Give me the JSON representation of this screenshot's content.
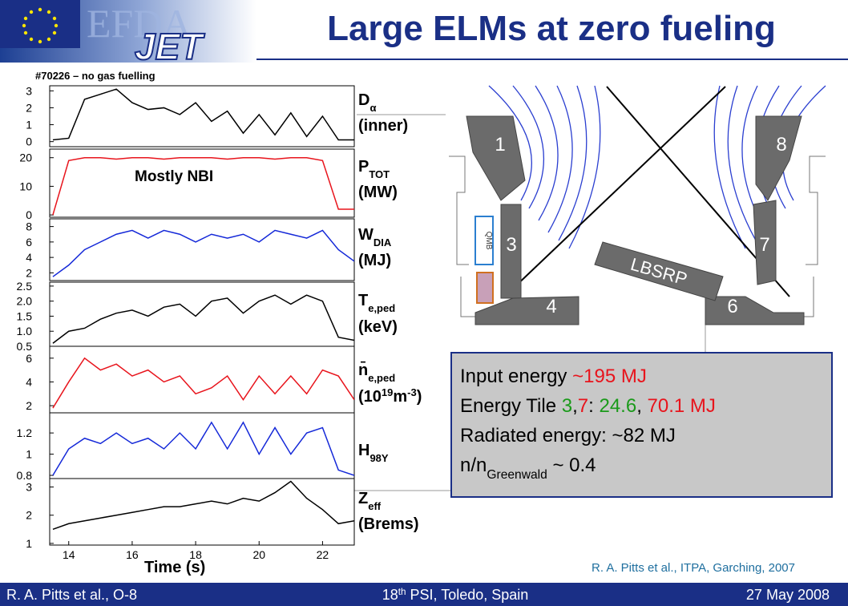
{
  "header": {
    "title": "Large ELMs at zero fueling",
    "logo_top": "EFDA",
    "logo_bottom": "JET"
  },
  "shot_note": "#70226 – no gas fuelling",
  "annotation": "Mostly NBI",
  "xlabel": "Time (s)",
  "chart_data": [
    {
      "type": "line",
      "label": [
        [
          {
            "text": "D"
          },
          {
            "text": "α",
            "sub": true
          }
        ],
        [
          {
            "text": "(inner)"
          }
        ]
      ],
      "x": [
        13.5,
        14,
        14.5,
        15,
        15.5,
        16,
        16.5,
        17,
        17.5,
        18,
        18.5,
        19,
        19.5,
        20,
        20.5,
        21,
        21.5,
        22,
        22.5,
        23
      ],
      "series": [
        {
          "color": "#000000",
          "values": [
            0.1,
            0.2,
            2.5,
            2.8,
            3.1,
            2.3,
            1.9,
            2.0,
            1.6,
            2.3,
            1.2,
            1.8,
            0.5,
            1.6,
            0.4,
            1.7,
            0.3,
            1.5,
            0.1,
            0.1
          ]
        }
      ],
      "xlim": [
        13.4,
        23
      ],
      "ylim": [
        -0.3,
        3.3
      ],
      "yticks": [
        0,
        1,
        2,
        3
      ]
    },
    {
      "type": "line",
      "label": [
        [
          {
            "text": "P"
          },
          {
            "text": "TOT",
            "sub": true
          }
        ],
        [
          {
            "text": "(MW)"
          }
        ]
      ],
      "x": [
        13.5,
        14,
        14.5,
        15,
        15.5,
        16,
        16.5,
        17,
        17.5,
        18,
        18.5,
        19,
        19.5,
        20,
        20.5,
        21,
        21.5,
        22,
        22.5,
        23
      ],
      "series": [
        {
          "color": "#e8141c",
          "values": [
            0,
            19,
            20,
            20,
            19.5,
            20,
            20,
            19.5,
            20,
            20,
            20,
            19.5,
            20,
            20,
            19.5,
            20,
            20,
            19,
            2,
            2
          ]
        }
      ],
      "xlim": [
        13.4,
        23
      ],
      "ylim": [
        -0.8,
        23
      ],
      "yticks": [
        0,
        10,
        20
      ]
    },
    {
      "type": "line",
      "label": [
        [
          {
            "text": "W"
          },
          {
            "text": "DIA",
            "sub": true
          }
        ],
        [
          {
            "text": "(MJ)"
          }
        ]
      ],
      "x": [
        13.5,
        14,
        14.5,
        15,
        15.5,
        16,
        16.5,
        17,
        17.5,
        18,
        18.5,
        19,
        19.5,
        20,
        20.5,
        21,
        21.5,
        22,
        22.5,
        23
      ],
      "series": [
        {
          "color": "#1428d8",
          "values": [
            1.5,
            3,
            5,
            6,
            7,
            7.5,
            6.5,
            7.5,
            7,
            6,
            7,
            6.5,
            7,
            6,
            7.5,
            7,
            6.5,
            7.5,
            5,
            3.5
          ]
        }
      ],
      "xlim": [
        13.4,
        23
      ],
      "ylim": [
        1,
        9
      ],
      "yticks": [
        2,
        4,
        6,
        8
      ]
    },
    {
      "type": "line",
      "label": [
        [
          {
            "text": "T"
          },
          {
            "text": "e,ped",
            "sub": true
          }
        ],
        [
          {
            "text": " (keV)"
          }
        ]
      ],
      "x": [
        13.5,
        14,
        14.5,
        15,
        15.5,
        16,
        16.5,
        17,
        17.5,
        18,
        18.5,
        19,
        19.5,
        20,
        20.5,
        21,
        21.5,
        22,
        22.5,
        23
      ],
      "series": [
        {
          "color": "#000000",
          "values": [
            0.6,
            1.0,
            1.1,
            1.4,
            1.6,
            1.7,
            1.5,
            1.8,
            1.9,
            1.5,
            2.0,
            2.1,
            1.6,
            2.0,
            2.2,
            1.9,
            2.2,
            2.0,
            0.8,
            0.7
          ]
        }
      ],
      "xlim": [
        13.4,
        23
      ],
      "ylim": [
        0.5,
        2.63
      ],
      "yticks": [
        {
          "value": 0.5,
          "label": "0.5"
        },
        {
          "value": 1,
          "label": "1.0"
        },
        {
          "value": 1.5,
          "label": "1.5"
        },
        {
          "value": 2,
          "label": "2.0"
        },
        {
          "value": 2.5,
          "label": "2.5"
        }
      ]
    },
    {
      "type": "line",
      "label": [
        [
          {
            "text": "n̄"
          },
          {
            "text": "e,ped",
            "sub": true
          }
        ],
        [
          {
            "text": "(10"
          },
          {
            "text": "19",
            "sup": true
          },
          {
            "text": "m"
          },
          {
            "text": "-3",
            "sup": true
          },
          {
            "text": ")"
          }
        ]
      ],
      "x": [
        13.5,
        14,
        14.5,
        15,
        15.5,
        16,
        16.5,
        17,
        17.5,
        18,
        18.5,
        19,
        19.5,
        20,
        20.5,
        21,
        21.5,
        22,
        22.5,
        23
      ],
      "series": [
        {
          "color": "#e8141c",
          "values": [
            1.8,
            4,
            6,
            5,
            5.5,
            4.5,
            5,
            4,
            4.5,
            3,
            3.5,
            4.5,
            2.5,
            4.5,
            3,
            4.5,
            3,
            5,
            4.5,
            2.5
          ]
        }
      ],
      "xlim": [
        13.4,
        23
      ],
      "ylim": [
        1.4,
        7
      ],
      "yticks": [
        2,
        4,
        6
      ]
    },
    {
      "type": "line",
      "label": [
        [
          {
            "text": "H"
          },
          {
            "text": "98Y",
            "sub": true
          }
        ]
      ],
      "x": [
        13.5,
        14,
        14.5,
        15,
        15.5,
        16,
        16.5,
        17,
        17.5,
        18,
        18.5,
        19,
        19.5,
        20,
        20.5,
        21,
        21.5,
        22,
        22.5,
        23
      ],
      "series": [
        {
          "color": "#1428d8",
          "values": [
            0.8,
            1.05,
            1.15,
            1.1,
            1.2,
            1.1,
            1.15,
            1.05,
            1.2,
            1.05,
            1.3,
            1.05,
            1.3,
            1.0,
            1.25,
            1.0,
            1.2,
            1.25,
            0.85,
            0.8
          ]
        }
      ],
      "xlim": [
        13.4,
        23
      ],
      "ylim": [
        0.77,
        1.39
      ],
      "yticks": [
        0.8,
        1,
        1.2
      ]
    },
    {
      "type": "line",
      "label": [
        [
          {
            "text": "Z"
          },
          {
            "text": "eff",
            "sub": true
          }
        ],
        [
          {
            "text": "(Brems)"
          }
        ]
      ],
      "x": [
        13.5,
        14,
        14.5,
        15,
        15.5,
        16,
        16.5,
        17,
        17.5,
        18,
        18.5,
        19,
        19.5,
        20,
        20.5,
        21,
        21.5,
        22,
        22.5,
        23
      ],
      "series": [
        {
          "color": "#000000",
          "values": [
            1.5,
            1.7,
            1.8,
            1.9,
            2.0,
            2.1,
            2.2,
            2.3,
            2.3,
            2.4,
            2.5,
            2.4,
            2.6,
            2.5,
            2.8,
            3.2,
            2.6,
            2.2,
            1.7,
            1.8
          ]
        }
      ],
      "xlim": [
        13.4,
        23
      ],
      "ylim": [
        0.94,
        3.3
      ],
      "yticks": [
        1,
        2,
        3
      ],
      "xticks": [
        14,
        16,
        18,
        20,
        22
      ]
    }
  ],
  "diagram": {
    "tiles": [
      "1",
      "8",
      "3",
      "7",
      "4",
      "6"
    ],
    "lbsrp": "LBSRP",
    "qmb": "QMB"
  },
  "info_box": [
    [
      {
        "text": "Input energy ",
        "color": "#000000"
      },
      {
        "text": "~195 MJ",
        "color": "#e8141c"
      }
    ],
    [
      {
        "text": "Energy Tile ",
        "color": "#000000"
      },
      {
        "text": "3",
        "color": "#1a9a1a"
      },
      {
        "text": ",",
        "color": "#000000"
      },
      {
        "text": "7",
        "color": "#e8141c"
      },
      {
        "text": ": ",
        "color": "#000000"
      },
      {
        "text": "24.6",
        "color": "#1a9a1a"
      },
      {
        "text": ", ",
        "color": "#000000"
      },
      {
        "text": "70.1 MJ",
        "color": "#e8141c"
      }
    ],
    [
      {
        "text": "Radiated energy: ~82 MJ",
        "color": "#000000"
      }
    ],
    [
      {
        "text": "n/n",
        "color": "#000000"
      },
      {
        "text": "Greenwald",
        "color": "#000000",
        "sub": true
      },
      {
        "text": " ~ 0.4",
        "color": "#000000"
      }
    ]
  ],
  "citation": "R. A. Pitts et al., ITPA, Garching, 2007",
  "footer": {
    "left": "R. A. Pitts et al., O-8",
    "center": [
      {
        "text": "18"
      },
      {
        "text": "th",
        "sup": true
      },
      {
        "text": " PSI, Toledo, Spain"
      }
    ],
    "right": "27 May 2008"
  }
}
